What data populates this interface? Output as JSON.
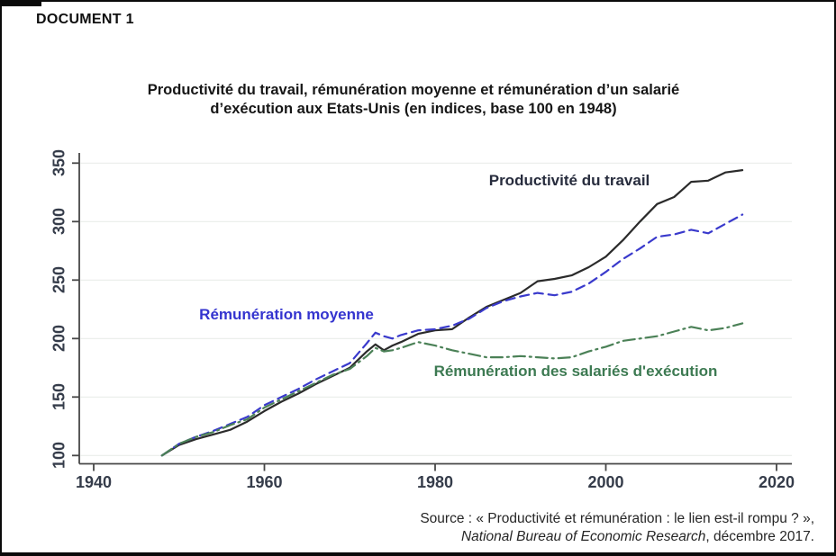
{
  "document_label": "DOCUMENT 1",
  "chart_data": {
    "type": "line",
    "title_line1": "Productivité du travail, rémunération moyenne et rémunération d’un salarié",
    "title_line2": "d’exécution aux Etats-Unis (en indices, base 100 en 1948)",
    "xlabel": "",
    "ylabel": "",
    "xticks": [
      1940,
      1960,
      1980,
      2000,
      2020
    ],
    "yticks": [
      100,
      150,
      200,
      250,
      300,
      350
    ],
    "xlim": [
      1938,
      2022
    ],
    "ylim": [
      93,
      358
    ],
    "grid": "horizontal-light",
    "legend_position": "labels-on-chart",
    "x": [
      1948,
      1950,
      1952,
      1954,
      1956,
      1958,
      1960,
      1962,
      1964,
      1966,
      1968,
      1970,
      1972,
      1973,
      1974,
      1975,
      1976,
      1978,
      1980,
      1982,
      1984,
      1986,
      1988,
      1990,
      1992,
      1994,
      1996,
      1998,
      2000,
      2002,
      2004,
      2006,
      2008,
      2010,
      2012,
      2014,
      2016
    ],
    "series": [
      {
        "name": "Productivité du travail",
        "label": "Productivité du travail",
        "color": "#2b2b2b",
        "label_color": "#272c3d",
        "style": "solid",
        "values": [
          100,
          109,
          114,
          118,
          122,
          129,
          138,
          146,
          153,
          161,
          168,
          175,
          189,
          195,
          190,
          194,
          197,
          204,
          207,
          208,
          218,
          227,
          233,
          239,
          249,
          251,
          254,
          261,
          270,
          284,
          300,
          315,
          321,
          334,
          335,
          342,
          344
        ]
      },
      {
        "name": "Rémunération moyenne",
        "label": "Rémunération moyenne",
        "color": "#3a3acc",
        "label_color": "#3434cf",
        "style": "dashed",
        "values": [
          100,
          110,
          116,
          121,
          127,
          133,
          143,
          150,
          157,
          165,
          172,
          179,
          196,
          205,
          202,
          200,
          203,
          207,
          208,
          211,
          217,
          226,
          232,
          236,
          239,
          237,
          240,
          247,
          257,
          268,
          277,
          287,
          289,
          293,
          290,
          298,
          306
        ]
      },
      {
        "name": "Rémunération des salariés d'exécution",
        "label": "Rémunération des salariés d'exécution",
        "color": "#4b8157",
        "label_color": "#3d7a52",
        "style": "dash-dot",
        "values": [
          100,
          110,
          116,
          120,
          126,
          131,
          141,
          148,
          155,
          162,
          169,
          174,
          185,
          192,
          189,
          190,
          192,
          197,
          194,
          190,
          187,
          184,
          184,
          185,
          184,
          183,
          184,
          189,
          193,
          198,
          200,
          202,
          206,
          210,
          207,
          209,
          213
        ]
      }
    ]
  },
  "source": {
    "line1": "Source : « Productivité et rémunération : le lien est-il rompu ? »,",
    "line2_italic": "National Bureau of Economic Research",
    "line2_rest": ", décembre 2017."
  }
}
